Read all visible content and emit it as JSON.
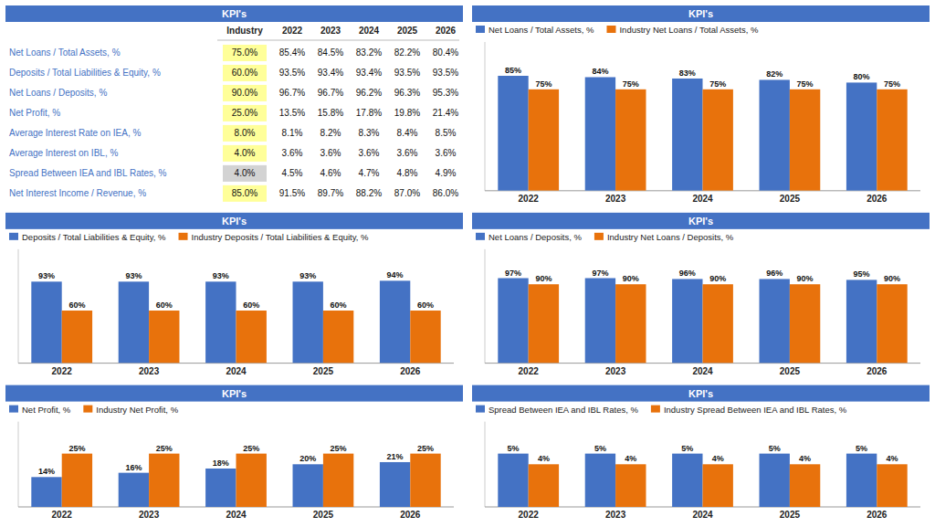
{
  "chart_data": [
    {
      "type": "table",
      "title": "KPI's",
      "categories": [
        "Net Loans / Total Assets, %",
        "Deposits / Total Liabilities & Equity, %",
        "Net Loans / Deposits, %",
        "Net Profit, %",
        "Average Interest Rate on IEA, %",
        "Average Interest on IBL, %",
        "Spread Between IEA and IBL Rates, %",
        "Net Interest Income / Revenue, %"
      ],
      "series": [
        {
          "name": "Industry",
          "values": [
            75.0,
            60.0,
            90.0,
            25.0,
            8.0,
            4.0,
            4.0,
            85.0
          ],
          "value_labels": [
            "75.0%",
            "60.0%",
            "90.0%",
            "25.0%",
            "8.0%",
            "4.0%",
            "4.0%",
            "85.0%"
          ],
          "colors": [
            "#FFFF99",
            "#FFFF99",
            "#FFFF99",
            "#FFFF99",
            "#FFFF99",
            "#FFFF99",
            "#D3D3D3",
            "#FFFF99"
          ]
        },
        {
          "name": "2022",
          "values": [
            85.4,
            93.5,
            96.7,
            13.5,
            8.1,
            3.6,
            4.5,
            91.5
          ],
          "value_labels": [
            "85.4%",
            "93.5%",
            "96.7%",
            "13.5%",
            "8.1%",
            "3.6%",
            "4.5%",
            "91.5%"
          ]
        },
        {
          "name": "2023",
          "values": [
            84.5,
            93.4,
            96.7,
            15.8,
            8.2,
            3.6,
            4.6,
            89.7
          ],
          "value_labels": [
            "84.5%",
            "93.4%",
            "96.7%",
            "15.8%",
            "8.2%",
            "3.6%",
            "4.6%",
            "89.7%"
          ]
        },
        {
          "name": "2024",
          "values": [
            83.2,
            93.4,
            96.2,
            17.8,
            8.3,
            3.6,
            4.7,
            88.2
          ],
          "value_labels": [
            "83.2%",
            "93.4%",
            "96.2%",
            "17.8%",
            "8.3%",
            "3.6%",
            "4.7%",
            "88.2%"
          ]
        },
        {
          "name": "2025",
          "values": [
            82.2,
            93.5,
            96.3,
            19.8,
            8.4,
            3.6,
            4.8,
            87.0
          ],
          "value_labels": [
            "82.2%",
            "93.5%",
            "96.3%",
            "19.8%",
            "8.4%",
            "3.6%",
            "4.8%",
            "87.0%"
          ]
        },
        {
          "name": "2026",
          "values": [
            80.4,
            93.5,
            95.3,
            21.4,
            8.5,
            3.6,
            4.9,
            86.0
          ],
          "value_labels": [
            "80.4%",
            "93.5%",
            "95.3%",
            "21.4%",
            "8.5%",
            "3.6%",
            "4.9%",
            "86.0%"
          ]
        }
      ],
      "data_labels": true
    },
    {
      "type": "bar",
      "title": "KPI's",
      "categories": [
        "2022",
        "2023",
        "2024",
        "2025",
        "2026"
      ],
      "series": [
        {
          "name": "Net Loans / Total Assets, %",
          "color": "#4472C4",
          "values": [
            85,
            84,
            83,
            82,
            80
          ],
          "value_labels": [
            "85%",
            "84%",
            "83%",
            "82%",
            "80%"
          ]
        },
        {
          "name": "Industry Net Loans / Total Assets, %",
          "color": "#E8720C",
          "values": [
            75,
            75,
            75,
            75,
            75
          ],
          "value_labels": [
            "75%",
            "75%",
            "75%",
            "75%",
            "75%"
          ]
        }
      ],
      "ylim": [
        0,
        110
      ],
      "data_labels": true,
      "tick_labels": "x"
    },
    {
      "type": "bar",
      "title": "KPI's",
      "categories": [
        "2022",
        "2023",
        "2024",
        "2025",
        "2026"
      ],
      "series": [
        {
          "name": "Deposits / Total Liabilities & Equity, %",
          "color": "#4472C4",
          "values": [
            93,
            93,
            93,
            93,
            94
          ],
          "value_labels": [
            "93%",
            "93%",
            "93%",
            "93%",
            "94%"
          ]
        },
        {
          "name": "Industry Deposits / Total Liabilities & Equity, %",
          "color": "#E8720C",
          "values": [
            60,
            60,
            60,
            60,
            60
          ],
          "value_labels": [
            "60%",
            "60%",
            "60%",
            "60%",
            "60%"
          ]
        }
      ],
      "ylim": [
        0,
        130
      ],
      "data_labels": true,
      "tick_labels": "x"
    },
    {
      "type": "bar",
      "title": "KPI's",
      "categories": [
        "2022",
        "2023",
        "2024",
        "2025",
        "2026"
      ],
      "series": [
        {
          "name": "Net Loans / Deposits, %",
          "color": "#4472C4",
          "values": [
            97,
            97,
            96,
            96,
            95
          ],
          "value_labels": [
            "97%",
            "97%",
            "96%",
            "96%",
            "95%"
          ]
        },
        {
          "name": "Industry Net Loans / Deposits, %",
          "color": "#E8720C",
          "values": [
            90,
            90,
            90,
            90,
            90
          ],
          "value_labels": [
            "90%",
            "90%",
            "90%",
            "90%",
            "90%"
          ]
        }
      ],
      "ylim": [
        0,
        130
      ],
      "data_labels": true,
      "tick_labels": "x"
    },
    {
      "type": "bar",
      "title": "KPI's",
      "categories": [
        "2022",
        "2023",
        "2024",
        "2025",
        "2026"
      ],
      "series": [
        {
          "name": "Net Profit, %",
          "color": "#4472C4",
          "values": [
            14,
            16,
            18,
            20,
            21
          ],
          "value_labels": [
            "14%",
            "16%",
            "18%",
            "20%",
            "21%"
          ]
        },
        {
          "name": "Industry Net Profit, %",
          "color": "#E8720C",
          "values": [
            25,
            25,
            25,
            25,
            25
          ],
          "value_labels": [
            "25%",
            "25%",
            "25%",
            "25%",
            "25%"
          ]
        }
      ],
      "ylim": [
        0,
        40
      ],
      "data_labels": true,
      "tick_labels": "x"
    },
    {
      "type": "bar",
      "title": "KPI's",
      "categories": [
        "2022",
        "2023",
        "2024",
        "2025",
        "2026"
      ],
      "series": [
        {
          "name": "Spread Between IEA and IBL Rates, %",
          "color": "#4472C4",
          "values": [
            5,
            5,
            5,
            5,
            5
          ],
          "value_labels": [
            "5%",
            "5%",
            "5%",
            "5%",
            "5%"
          ]
        },
        {
          "name": "Industry Spread Between IEA and IBL Rates, %",
          "color": "#E8720C",
          "values": [
            4,
            4,
            4,
            4,
            4
          ],
          "value_labels": [
            "4%",
            "4%",
            "4%",
            "4%",
            "4%"
          ]
        }
      ],
      "ylim": [
        0,
        8
      ],
      "data_labels": true,
      "tick_labels": "x"
    }
  ]
}
